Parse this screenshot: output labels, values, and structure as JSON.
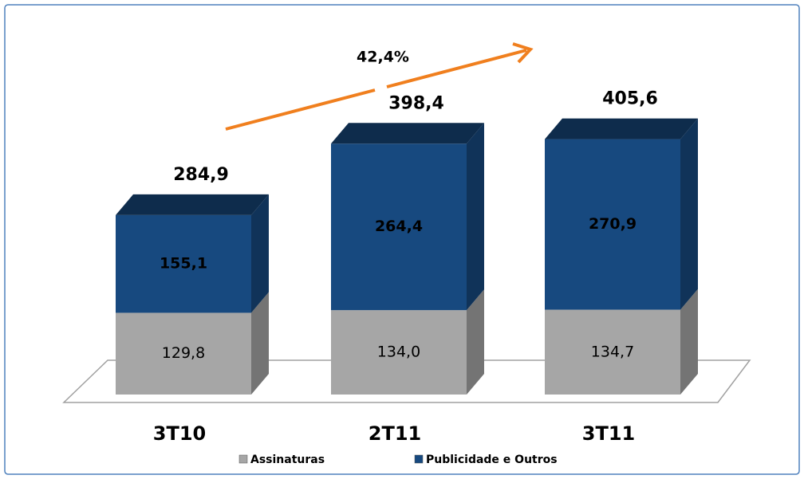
{
  "chart_data": {
    "type": "bar",
    "stacked": true,
    "three_d": true,
    "categories": [
      "3T10",
      "2T11",
      "3T11"
    ],
    "series": [
      {
        "name": "Assinaturas",
        "color": "#a6a6a6",
        "values": [
          129.8,
          134.0,
          134.7
        ],
        "value_labels": [
          "129,8",
          "134,0",
          "134,7"
        ]
      },
      {
        "name": "Publicidade e Outros",
        "color": "#17497f",
        "values": [
          155.1,
          264.4,
          270.9
        ],
        "value_labels": [
          "155,1",
          "264,4",
          "270,9"
        ]
      }
    ],
    "totals": [
      284.9,
      398.4,
      405.6
    ],
    "total_labels": [
      "284,9",
      "398,4",
      "405,6"
    ],
    "annotation": "42,4%"
  }
}
